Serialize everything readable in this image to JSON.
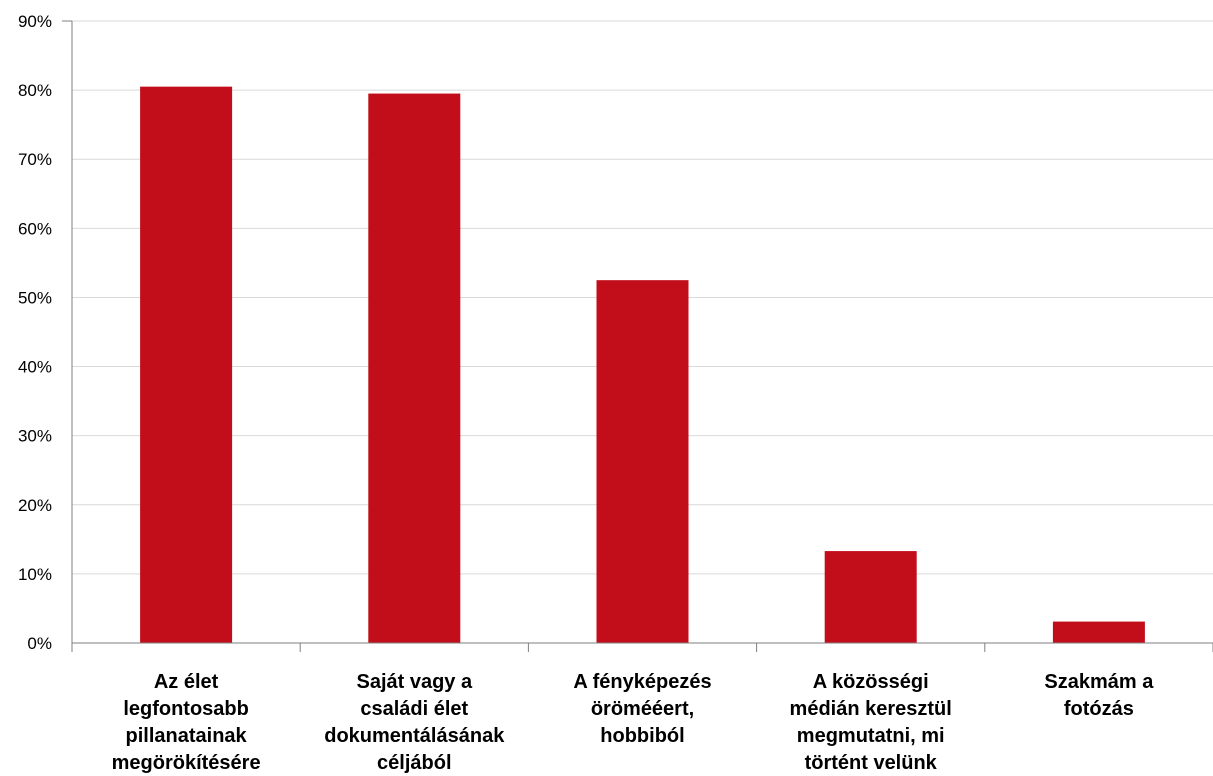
{
  "chart_data": {
    "type": "bar",
    "categories": [
      [
        "Az élet",
        "legfontosabb",
        "pillanatainak",
        "megörökítésére"
      ],
      [
        "Saját vagy a",
        "családi élet",
        "dokumentálásának",
        "céljából"
      ],
      [
        "A fényképezés",
        "örömééert,",
        "hobbiból"
      ],
      [
        "A közösségi",
        "médián keresztül",
        "megmutatni, mi",
        "történt velünk"
      ],
      [
        "Szakmám a",
        "fotózás"
      ]
    ],
    "values": [
      80.5,
      79.5,
      52.5,
      13.3,
      3.1
    ],
    "ylim": [
      0,
      90
    ],
    "yticks": [
      0,
      10,
      20,
      30,
      40,
      50,
      60,
      70,
      80,
      90
    ],
    "ytick_labels": [
      "0%",
      "10%",
      "20%",
      "30%",
      "40%",
      "50%",
      "60%",
      "70%",
      "80%",
      "90%"
    ],
    "grid": true,
    "title": "",
    "xlabel": "",
    "ylabel": "",
    "colors": {
      "bar": "#c20e1a",
      "grid": "#d9d9d9",
      "axis": "#7f7f7f"
    }
  }
}
